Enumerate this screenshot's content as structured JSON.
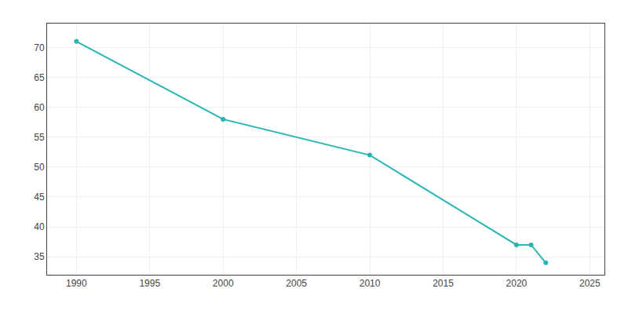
{
  "chart_data": {
    "type": "line",
    "x": [
      1990,
      2000,
      2010,
      2020,
      2021,
      2022
    ],
    "values": [
      71,
      58,
      52,
      37,
      37,
      34
    ],
    "color": "#2ab5b5",
    "marker": "circle",
    "xlim": [
      1988,
      2026
    ],
    "ylim": [
      32,
      74
    ],
    "xticks": [
      1990,
      1995,
      2000,
      2005,
      2010,
      2015,
      2020,
      2025
    ],
    "yticks": [
      35,
      40,
      45,
      50,
      55,
      60,
      65,
      70
    ],
    "grid": true
  }
}
